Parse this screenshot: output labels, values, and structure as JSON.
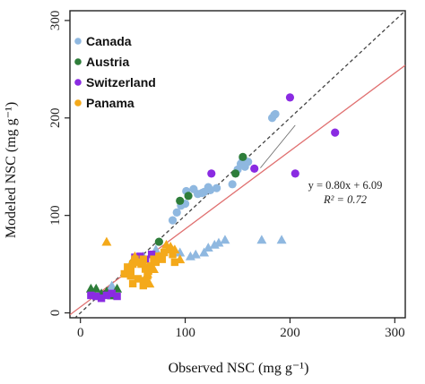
{
  "chart_data": {
    "type": "scatter",
    "xlabel": "Observed NSC (mg g⁻¹)",
    "ylabel": "Modeled NSC (mg g⁻¹)",
    "xlim": [
      -10,
      310
    ],
    "ylim": [
      -5,
      310
    ],
    "xticks": [
      0,
      100,
      200,
      300
    ],
    "yticks": [
      0,
      100,
      200,
      300
    ],
    "grid": false,
    "legend_position": "top-left",
    "series": [
      {
        "name": "Canada",
        "color": "#8fb8e0",
        "points_circle": [
          [
            88,
            95
          ],
          [
            92,
            103
          ],
          [
            96,
            110
          ],
          [
            100,
            112
          ],
          [
            101,
            125
          ],
          [
            108,
            127
          ],
          [
            112,
            122
          ],
          [
            118,
            124
          ],
          [
            124,
            126
          ],
          [
            130,
            128
          ],
          [
            145,
            132
          ],
          [
            150,
            147
          ],
          [
            153,
            153
          ],
          [
            157,
            150
          ],
          [
            160,
            155
          ],
          [
            183,
            200
          ],
          [
            185,
            203
          ],
          [
            186,
            204
          ],
          [
            116,
            123
          ],
          [
            122,
            129
          ],
          [
            155,
            158
          ]
        ],
        "points_triangle": [
          [
            30,
            28
          ],
          [
            60,
            58
          ],
          [
            72,
            65
          ],
          [
            95,
            62
          ],
          [
            105,
            58
          ],
          [
            110,
            60
          ],
          [
            118,
            62
          ],
          [
            122,
            67
          ],
          [
            128,
            70
          ],
          [
            132,
            72
          ],
          [
            138,
            75
          ],
          [
            173,
            75
          ],
          [
            192,
            75
          ]
        ]
      },
      {
        "name": "Austria",
        "color": "#2e7d3a",
        "points_circle": [
          [
            50,
            51
          ],
          [
            58,
            54
          ],
          [
            75,
            73
          ],
          [
            95,
            115
          ],
          [
            103,
            120
          ],
          [
            148,
            143
          ],
          [
            155,
            160
          ]
        ],
        "points_triangle": [
          [
            10,
            25
          ],
          [
            15,
            25
          ],
          [
            20,
            20
          ],
          [
            25,
            22
          ],
          [
            30,
            18
          ],
          [
            35,
            25
          ]
        ]
      },
      {
        "name": "Switzerland",
        "color": "#8a2be2",
        "points_circle": [
          [
            125,
            143
          ],
          [
            166,
            148
          ],
          [
            200,
            221
          ],
          [
            205,
            143
          ],
          [
            243,
            185
          ]
        ],
        "points_square": [
          [
            10,
            18
          ],
          [
            15,
            17
          ],
          [
            20,
            15
          ],
          [
            25,
            18
          ],
          [
            30,
            20
          ],
          [
            35,
            17
          ],
          [
            52,
            57
          ],
          [
            57,
            58
          ],
          [
            62,
            55
          ],
          [
            68,
            60
          ]
        ]
      },
      {
        "name": "Panama",
        "color": "#f4a91a",
        "points_square": [
          [
            42,
            40
          ],
          [
            45,
            47
          ],
          [
            48,
            45
          ],
          [
            50,
            50
          ],
          [
            52,
            55
          ],
          [
            55,
            52
          ],
          [
            58,
            50
          ],
          [
            60,
            55
          ],
          [
            62,
            45
          ],
          [
            64,
            38
          ],
          [
            65,
            43
          ],
          [
            67,
            48
          ],
          [
            70,
            55
          ],
          [
            72,
            52
          ],
          [
            75,
            58
          ],
          [
            78,
            55
          ],
          [
            80,
            62
          ],
          [
            60,
            28
          ],
          [
            62,
            33
          ],
          [
            55,
            35
          ],
          [
            50,
            30
          ],
          [
            48,
            38
          ],
          [
            85,
            65
          ],
          [
            88,
            60
          ],
          [
            90,
            52
          ]
        ],
        "points_triangle": [
          [
            25,
            73
          ],
          [
            52,
            58
          ],
          [
            60,
            52
          ],
          [
            64,
            40
          ],
          [
            66,
            30
          ],
          [
            70,
            45
          ],
          [
            75,
            58
          ],
          [
            82,
            70
          ],
          [
            86,
            68
          ],
          [
            90,
            65
          ],
          [
            95,
            55
          ]
        ]
      }
    ],
    "reference_lines": [
      {
        "kind": "one-to-one",
        "style": "dashed",
        "color": "#444444",
        "slope": 1,
        "intercept": 0
      },
      {
        "kind": "regression",
        "style": "solid",
        "color": "#e07070",
        "slope": 0.8,
        "intercept": 6.09
      }
    ],
    "annotation": {
      "equation": "y = 0.80x + 6.09",
      "r2": "R² = 0.72",
      "pointer_from": [
        205,
        187
      ],
      "pointer_to": [
        170,
        145
      ]
    }
  }
}
